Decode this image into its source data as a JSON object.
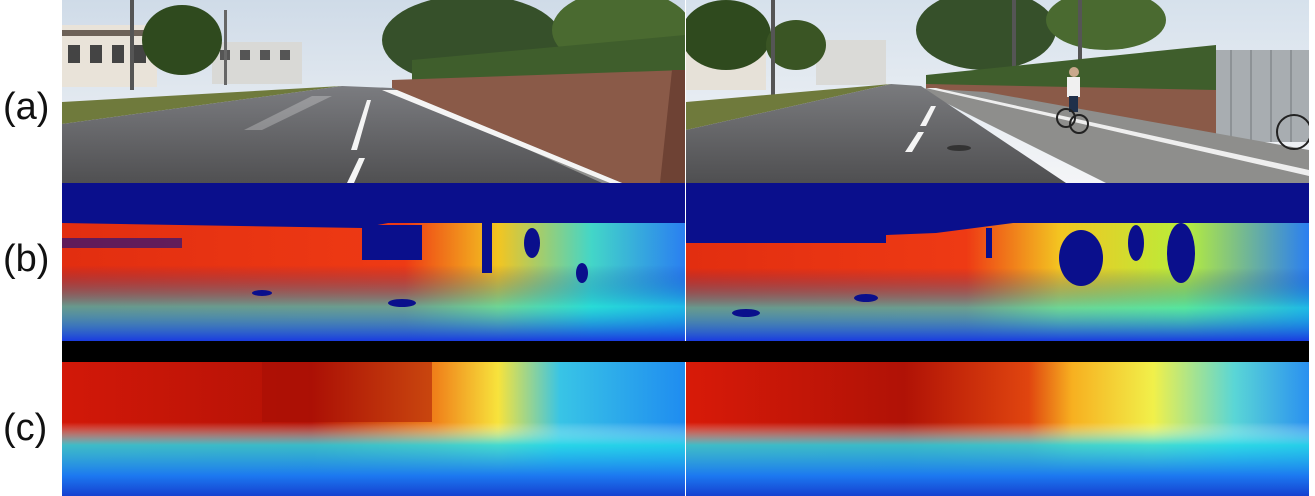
{
  "rows": {
    "a": {
      "label": "(a)"
    },
    "b": {
      "label": "(b)"
    },
    "c": {
      "label": "(c)"
    }
  },
  "colors": {
    "sky": "#dfe6ee",
    "road": "#5e5e60",
    "wall": "#8a5a48",
    "foliage": "#3f5e2c",
    "depth_far": "#0a1a9a",
    "depth_mid": "#17d0e0",
    "depth_near": "#c21a0a",
    "separator": "#000000"
  }
}
